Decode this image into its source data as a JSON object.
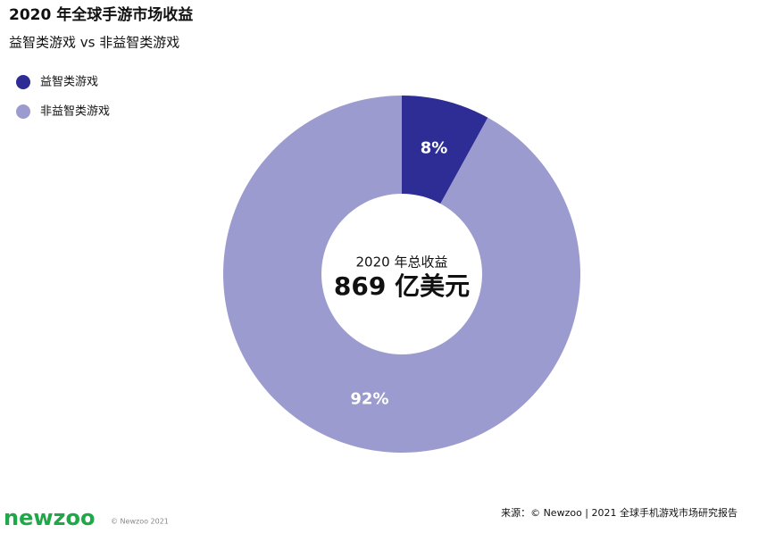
{
  "chart_data": {
    "type": "donut",
    "title": "2020 年全球手游市场收益",
    "subtitle": "益智类游戏 vs 非益智类游戏",
    "categories": [
      "益智类游戏",
      "非益智类游戏"
    ],
    "values": [
      8,
      92
    ],
    "value_labels": [
      "8%",
      "92%"
    ],
    "colors": [
      "#2e2d96",
      "#9b9bcf"
    ],
    "legend": "top-left",
    "annotations": [
      "2020 年总收益",
      "869 亿美元"
    ]
  },
  "footer": {
    "logo": "newzoo",
    "copyright": "© Newzoo 2021",
    "source": "来源：© Newzoo | 2021 全球手机游戏市场研究报告"
  }
}
